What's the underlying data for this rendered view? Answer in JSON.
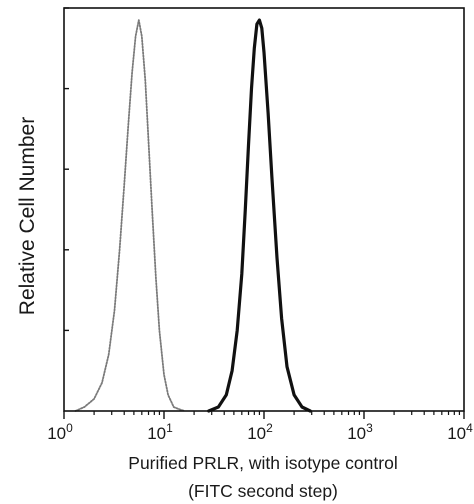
{
  "chart_data": {
    "type": "line",
    "title": "",
    "xlabel": "Purified PRLR, with isotype control",
    "xlabel_line2": "(FITC second step)",
    "ylabel": "Relative Cell Number",
    "x_scale": "log",
    "xlim": [
      1,
      10000
    ],
    "ylim": [
      0,
      100
    ],
    "x_ticks": [
      {
        "value": 1,
        "base": "10",
        "exp": "0"
      },
      {
        "value": 10,
        "base": "10",
        "exp": "1"
      },
      {
        "value": 100,
        "base": "10",
        "exp": "2"
      },
      {
        "value": 1000,
        "base": "10",
        "exp": "3"
      },
      {
        "value": 10000,
        "base": "10",
        "exp": "4"
      }
    ],
    "y_tick_count": 5,
    "grid": false,
    "legend": "none",
    "series": [
      {
        "style": "dotted-gray",
        "color": "#7a7a7a",
        "x": [
          1.3,
          1.6,
          2.0,
          2.4,
          2.8,
          3.2,
          3.6,
          4.0,
          4.4,
          4.8,
          5.2,
          5.6,
          6.0,
          6.5,
          7.0,
          7.6,
          8.3,
          9.0,
          10.0,
          11.0,
          12.5,
          14.0,
          16.0
        ],
        "y": [
          0,
          1,
          3,
          7,
          14,
          25,
          40,
          56,
          71,
          84,
          93,
          97,
          93,
          82,
          67,
          50,
          33,
          20,
          9,
          4,
          1,
          0.5,
          0
        ]
      },
      {
        "style": "solid-black",
        "color": "#111111",
        "x": [
          28,
          35,
          42,
          48,
          54,
          60,
          65,
          70,
          75,
          80,
          85,
          90,
          95,
          100,
          110,
          120,
          135,
          150,
          170,
          200,
          240,
          290
        ],
        "y": [
          0,
          1,
          4,
          10,
          20,
          34,
          50,
          66,
          80,
          90,
          96,
          97,
          95,
          89,
          74,
          58,
          38,
          23,
          11,
          4,
          1,
          0
        ]
      }
    ]
  }
}
